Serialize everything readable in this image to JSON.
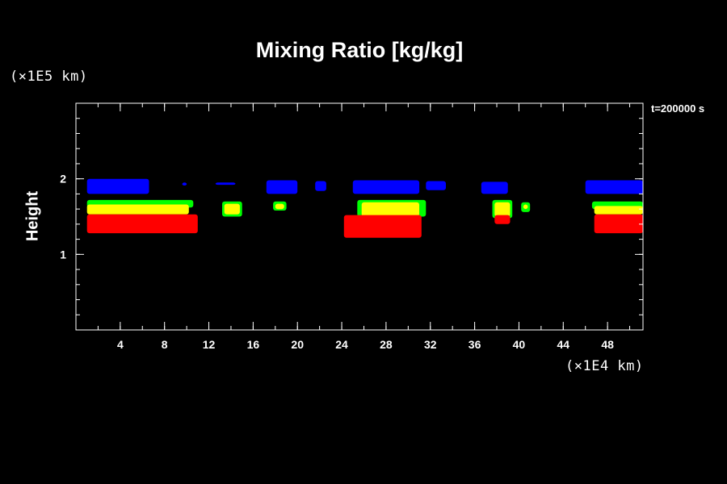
{
  "chart_data": {
    "type": "area",
    "title": "Mixing Ratio [kg/kg]",
    "ylabel": "Height",
    "xlabel": "",
    "x_unit": "(×1E4 km)",
    "y_unit": "(×1E5 km)",
    "time_label": "t=200000 s",
    "xlim": [
      0,
      51.2
    ],
    "ylim": [
      0,
      3
    ],
    "xticks": [
      4,
      8,
      12,
      16,
      20,
      24,
      28,
      32,
      36,
      40,
      44,
      48
    ],
    "yticks": [
      1,
      2
    ],
    "xminor_step": 2,
    "yminor_step": 0.2,
    "grid": false,
    "colors": {
      "background": "#000000",
      "axes": "#ffffff",
      "band_blue": "#0000ff",
      "band_green": "#00ff00",
      "band_yellow": "#ffff00",
      "band_red": "#ff0000"
    },
    "series": [
      {
        "color": "#0000ff",
        "regions": [
          {
            "x0": 1.0,
            "x1": 6.6,
            "y0": 1.8,
            "y1": 2.0
          },
          {
            "x0": 9.6,
            "x1": 10.0,
            "y0": 1.91,
            "y1": 1.95
          },
          {
            "x0": 12.6,
            "x1": 14.4,
            "y0": 1.92,
            "y1": 1.95
          },
          {
            "x0": 17.2,
            "x1": 20.0,
            "y0": 1.8,
            "y1": 1.98
          },
          {
            "x0": 21.6,
            "x1": 22.6,
            "y0": 1.84,
            "y1": 1.97
          },
          {
            "x0": 25.0,
            "x1": 31.0,
            "y0": 1.8,
            "y1": 1.98
          },
          {
            "x0": 31.6,
            "x1": 33.4,
            "y0": 1.85,
            "y1": 1.97
          },
          {
            "x0": 36.6,
            "x1": 39.0,
            "y0": 1.8,
            "y1": 1.96
          },
          {
            "x0": 46.0,
            "x1": 51.2,
            "y0": 1.8,
            "y1": 1.98
          }
        ]
      },
      {
        "color": "#00ff00",
        "regions": [
          {
            "x0": 1.0,
            "x1": 10.6,
            "y0": 1.62,
            "y1": 1.72
          },
          {
            "x0": 13.2,
            "x1": 15.0,
            "y0": 1.5,
            "y1": 1.7
          },
          {
            "x0": 17.8,
            "x1": 19.0,
            "y0": 1.58,
            "y1": 1.7
          },
          {
            "x0": 25.4,
            "x1": 31.6,
            "y0": 1.5,
            "y1": 1.72
          },
          {
            "x0": 37.6,
            "x1": 39.4,
            "y0": 1.48,
            "y1": 1.72
          },
          {
            "x0": 40.2,
            "x1": 41.0,
            "y0": 1.56,
            "y1": 1.69
          },
          {
            "x0": 46.6,
            "x1": 51.2,
            "y0": 1.6,
            "y1": 1.7
          }
        ]
      },
      {
        "color": "#ffff00",
        "regions": [
          {
            "x0": 1.0,
            "x1": 10.2,
            "y0": 1.53,
            "y1": 1.66
          },
          {
            "x0": 13.4,
            "x1": 14.8,
            "y0": 1.53,
            "y1": 1.67
          },
          {
            "x0": 18.0,
            "x1": 18.8,
            "y0": 1.6,
            "y1": 1.67
          },
          {
            "x0": 25.8,
            "x1": 31.0,
            "y0": 1.5,
            "y1": 1.69
          },
          {
            "x0": 37.8,
            "x1": 39.2,
            "y0": 1.5,
            "y1": 1.69
          },
          {
            "x0": 40.4,
            "x1": 40.8,
            "y0": 1.6,
            "y1": 1.66
          },
          {
            "x0": 46.8,
            "x1": 51.2,
            "y0": 1.53,
            "y1": 1.64
          }
        ]
      },
      {
        "color": "#ff0000",
        "regions": [
          {
            "x0": 1.0,
            "x1": 11.0,
            "y0": 1.28,
            "y1": 1.53
          },
          {
            "x0": 24.2,
            "x1": 31.2,
            "y0": 1.22,
            "y1": 1.52
          },
          {
            "x0": 37.8,
            "x1": 39.2,
            "y0": 1.4,
            "y1": 1.52
          },
          {
            "x0": 46.8,
            "x1": 51.2,
            "y0": 1.28,
            "y1": 1.53
          }
        ]
      }
    ]
  }
}
